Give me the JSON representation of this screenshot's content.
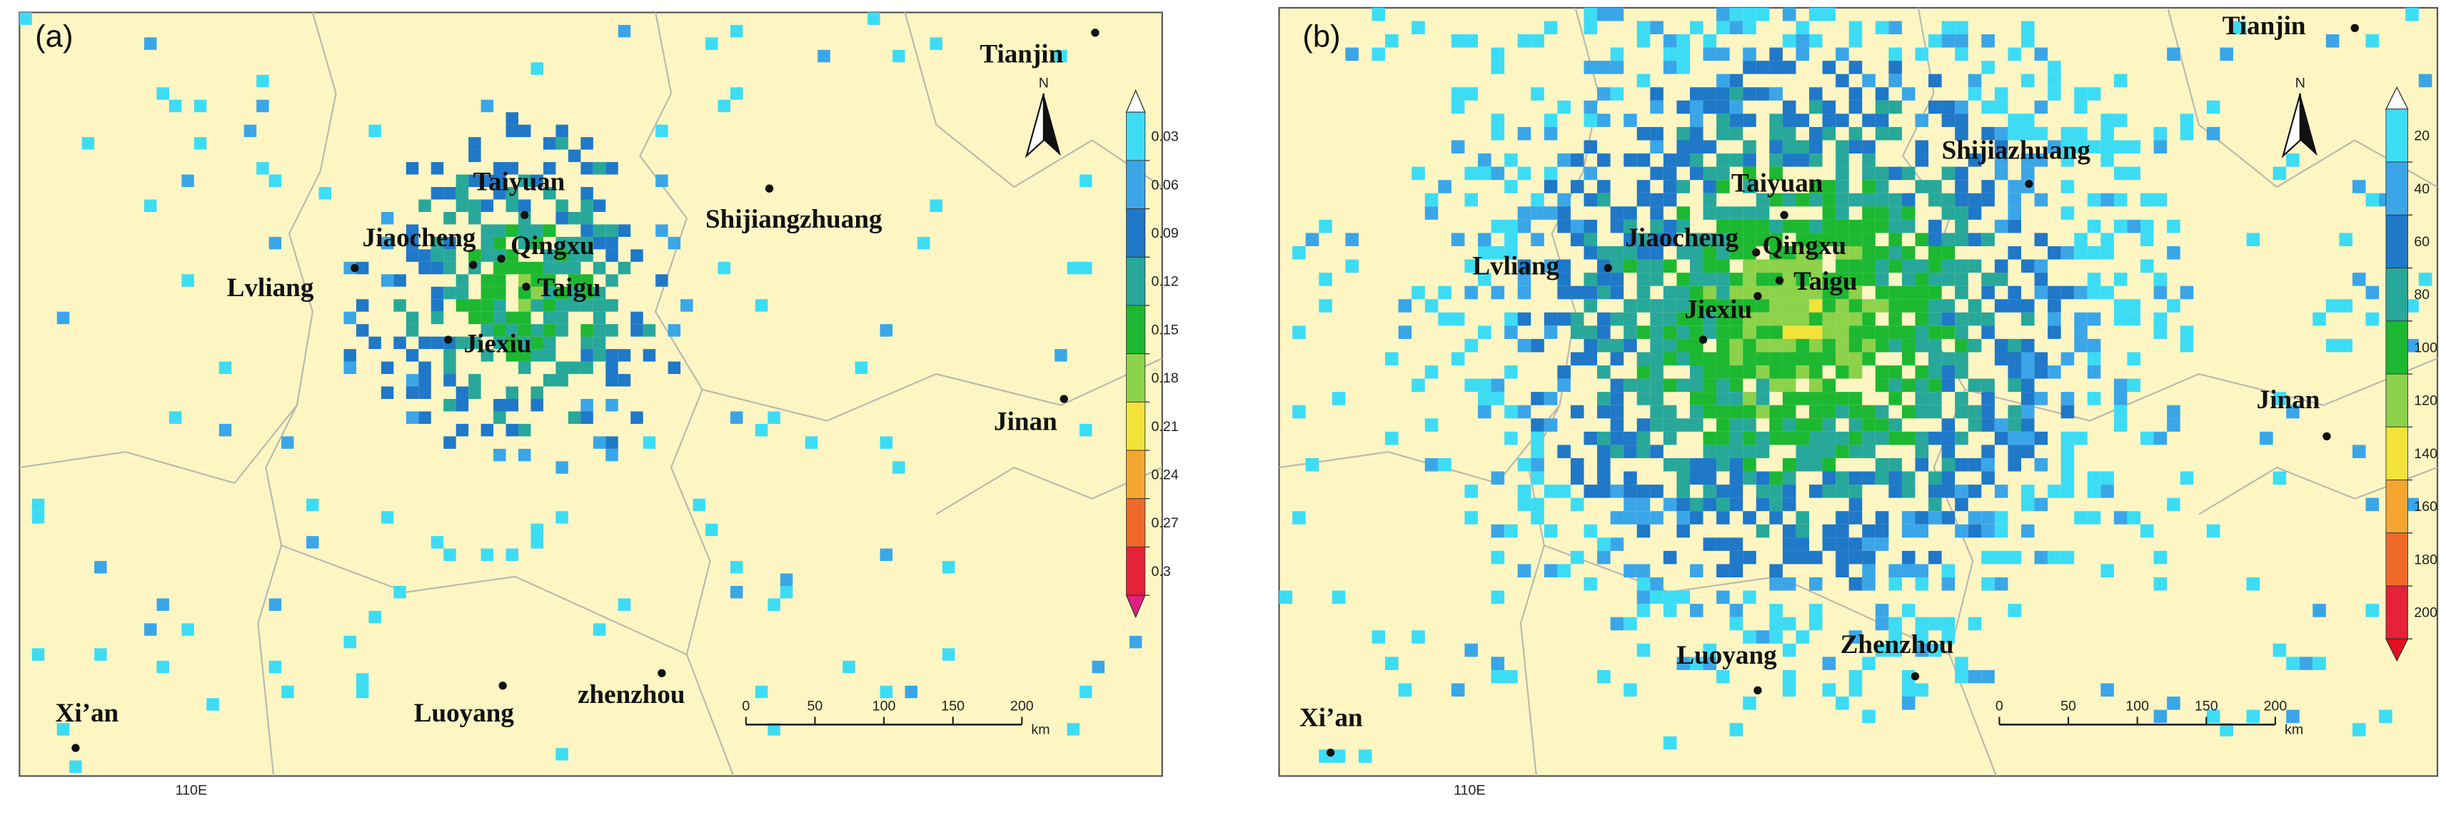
{
  "panels": [
    {
      "label": "(a)",
      "cities": [
        "Tianjin",
        "Taiyuan",
        "Shijiangzhuang",
        "Jiaocheng",
        "Qingxu",
        "Lvliang",
        "Taigu",
        "Jiexiu",
        "Jinan",
        "Luoyang",
        "zhenzhou",
        "Xi’an"
      ],
      "colorbar": {
        "ticks": [
          0.03,
          0.06,
          0.09,
          0.12,
          0.15,
          0.18,
          0.21,
          0.24,
          0.27,
          0.3
        ],
        "colors": [
          "#3ddcf5",
          "#3aa6e8",
          "#1f78c8",
          "#27a89a",
          "#1db832",
          "#8cd24a",
          "#f2e23a",
          "#f4a630",
          "#ef6a28",
          "#e52238"
        ],
        "top_color": "#ffffff",
        "bottom_color": "#e0207e"
      },
      "scale": {
        "ticks": [
          0,
          50,
          100,
          150,
          200
        ],
        "unit": "km"
      },
      "north": "N",
      "lon_label": "110E"
    },
    {
      "label": "(b)",
      "cities": [
        "Tianjin",
        "Shijiazhuang",
        "Taiyuan",
        "Jiaocheng",
        "Qingxu",
        "Lvliang",
        "Taigu",
        "Jiexiu",
        "Jinan",
        "Luoyang",
        "Zhenzhou",
        "Xi’an"
      ],
      "colorbar": {
        "ticks": [
          20,
          40,
          60,
          80,
          100,
          120,
          140,
          160,
          180,
          200
        ],
        "colors": [
          "#3ddcf5",
          "#3aa6e8",
          "#1f78c8",
          "#27a89a",
          "#1db832",
          "#8cd24a",
          "#f2e23a",
          "#f4a630",
          "#ef6a28",
          "#e52238"
        ],
        "top_color": "#ffffff",
        "bottom_color": "#e01020"
      },
      "scale": {
        "ticks": [
          0,
          50,
          100,
          150,
          200
        ],
        "unit": "km"
      },
      "north": "N",
      "lon_label": "110E"
    }
  ]
}
